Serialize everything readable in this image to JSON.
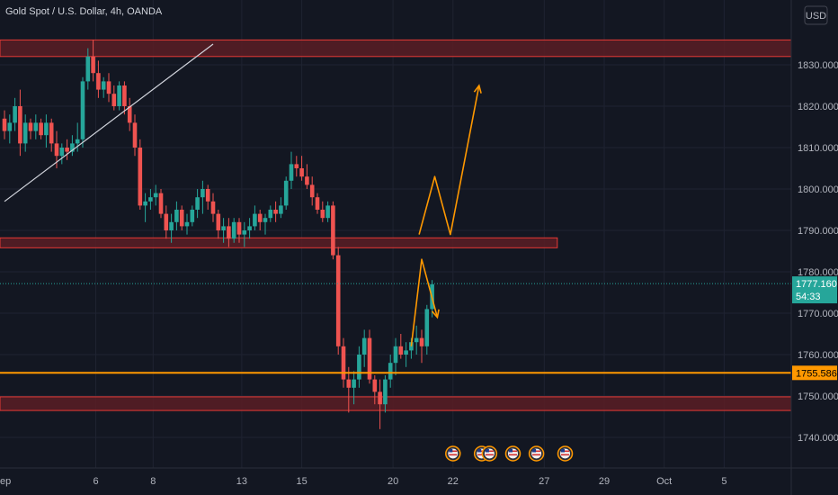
{
  "header": {
    "title": "Gold Spot / U.S. Dollar, 4h, OANDA",
    "currency": "USD"
  },
  "colors": {
    "background": "#131722",
    "grid": "#1f2331",
    "up": "#26a69a",
    "down": "#ef5350",
    "zone_fill": "#5a1d24",
    "zone_stroke": "#e53935",
    "level_line": "#ff9800",
    "price_tag": "#26a69a",
    "level_tag": "#ff9800",
    "trendline": "#d1d4dc",
    "projection": "#ff9800",
    "axis_text": "#b2b5be"
  },
  "chart_data": {
    "type": "candlestick",
    "title": "Gold Spot / U.S. Dollar, 4h, OANDA",
    "ylim": [
      1734,
      1840
    ],
    "y_ticks": [
      1740,
      1750,
      1760,
      1770,
      1780,
      1790,
      1800,
      1810,
      1820,
      1830
    ],
    "y_tick_labels": [
      "1740.000",
      "1750.000",
      "1760.000",
      "1770.000",
      "1780.000",
      "1790.000",
      "1800.000",
      "1810.000",
      "1820.000",
      "1830.000"
    ],
    "x_ticks": [
      {
        "label": "ep",
        "idx": -1
      },
      {
        "label": "6",
        "idx": 17.5
      },
      {
        "label": "8",
        "idx": 28.5
      },
      {
        "label": "13",
        "idx": 45.5
      },
      {
        "label": "15",
        "idx": 57
      },
      {
        "label": "20",
        "idx": 74.5
      },
      {
        "label": "22",
        "idx": 86
      },
      {
        "label": "27",
        "idx": 103.5
      },
      {
        "label": "29",
        "idx": 115
      },
      {
        "label": "Oct",
        "idx": 126.5
      },
      {
        "label": "5",
        "idx": 138
      }
    ],
    "candles": [
      [
        1817,
        1819,
        1812,
        1814
      ],
      [
        1814,
        1818,
        1811,
        1816
      ],
      [
        1816,
        1822,
        1814,
        1820
      ],
      [
        1820,
        1824,
        1808,
        1811
      ],
      [
        1811,
        1818,
        1809,
        1816
      ],
      [
        1816,
        1817,
        1812,
        1814
      ],
      [
        1814,
        1818,
        1812,
        1816
      ],
      [
        1816,
        1817,
        1812,
        1813
      ],
      [
        1813,
        1818,
        1810,
        1816
      ],
      [
        1816,
        1817,
        1809,
        1811
      ],
      [
        1811,
        1814,
        1805,
        1808
      ],
      [
        1808,
        1811,
        1806,
        1810
      ],
      [
        1810,
        1812,
        1807,
        1809
      ],
      [
        1809,
        1813,
        1808,
        1811
      ],
      [
        1811,
        1816,
        1809,
        1812
      ],
      [
        1812,
        1827,
        1810,
        1826
      ],
      [
        1826,
        1834,
        1824,
        1832
      ],
      [
        1832,
        1836,
        1826,
        1828
      ],
      [
        1828,
        1831,
        1822,
        1824
      ],
      [
        1824,
        1827,
        1822,
        1826
      ],
      [
        1826,
        1828,
        1821,
        1823
      ],
      [
        1823,
        1825,
        1819,
        1820
      ],
      [
        1820,
        1826,
        1819,
        1825
      ],
      [
        1825,
        1826,
        1818,
        1820
      ],
      [
        1820,
        1822,
        1814,
        1816
      ],
      [
        1816,
        1818,
        1808,
        1810
      ],
      [
        1810,
        1812,
        1795,
        1796
      ],
      [
        1796,
        1799,
        1792,
        1797
      ],
      [
        1797,
        1800,
        1795,
        1798
      ],
      [
        1798,
        1801,
        1796,
        1799
      ],
      [
        1799,
        1800,
        1793,
        1794
      ],
      [
        1794,
        1796,
        1788,
        1790
      ],
      [
        1790,
        1794,
        1787,
        1792
      ],
      [
        1792,
        1797,
        1790,
        1795
      ],
      [
        1795,
        1796,
        1790,
        1791
      ],
      [
        1791,
        1794,
        1789,
        1792
      ],
      [
        1792,
        1796,
        1791,
        1795
      ],
      [
        1795,
        1800,
        1793,
        1798
      ],
      [
        1798,
        1802,
        1794,
        1800
      ],
      [
        1800,
        1801,
        1795,
        1797
      ],
      [
        1797,
        1799,
        1792,
        1794
      ],
      [
        1794,
        1795,
        1788,
        1790
      ],
      [
        1790,
        1793,
        1787,
        1791
      ],
      [
        1791,
        1793,
        1786,
        1788
      ],
      [
        1788,
        1793,
        1787,
        1792
      ],
      [
        1792,
        1793,
        1787,
        1789
      ],
      [
        1789,
        1792,
        1786,
        1790
      ],
      [
        1790,
        1793,
        1788,
        1791
      ],
      [
        1791,
        1796,
        1790,
        1794
      ],
      [
        1794,
        1795,
        1790,
        1792
      ],
      [
        1792,
        1794,
        1789,
        1793
      ],
      [
        1793,
        1796,
        1792,
        1795
      ],
      [
        1795,
        1797,
        1792,
        1794
      ],
      [
        1794,
        1798,
        1793,
        1796
      ],
      [
        1796,
        1803,
        1795,
        1802
      ],
      [
        1802,
        1809,
        1800,
        1806
      ],
      [
        1806,
        1808,
        1803,
        1805
      ],
      [
        1805,
        1808,
        1802,
        1803
      ],
      [
        1803,
        1806,
        1800,
        1801
      ],
      [
        1801,
        1803,
        1796,
        1798
      ],
      [
        1798,
        1799,
        1794,
        1795
      ],
      [
        1795,
        1797,
        1792,
        1793
      ],
      [
        1793,
        1797,
        1792,
        1796
      ],
      [
        1796,
        1797,
        1783,
        1784
      ],
      [
        1784,
        1786,
        1760,
        1762
      ],
      [
        1762,
        1764,
        1752,
        1754
      ],
      [
        1754,
        1757,
        1746,
        1752
      ],
      [
        1752,
        1756,
        1748,
        1754
      ],
      [
        1754,
        1762,
        1752,
        1760
      ],
      [
        1760,
        1766,
        1757,
        1764
      ],
      [
        1764,
        1766,
        1753,
        1754
      ],
      [
        1754,
        1755,
        1748,
        1751
      ],
      [
        1751,
        1754,
        1742,
        1748
      ],
      [
        1748,
        1755,
        1746,
        1754
      ],
      [
        1754,
        1760,
        1752,
        1758
      ],
      [
        1758,
        1764,
        1755,
        1762
      ],
      [
        1762,
        1765,
        1759,
        1760
      ],
      [
        1760,
        1763,
        1757,
        1761
      ],
      [
        1761,
        1764,
        1759,
        1763
      ],
      [
        1763,
        1767,
        1760,
        1764
      ],
      [
        1764,
        1766,
        1758,
        1762
      ],
      [
        1762,
        1772,
        1760,
        1771
      ],
      [
        1771,
        1778,
        1769,
        1777
      ]
    ],
    "resistance_zones": [
      [
        1832,
        1836
      ],
      [
        1785.8,
        1788.2
      ],
      [
        1746.5,
        1749.8
      ]
    ],
    "level": 1755.586,
    "current_price": 1777.16,
    "trendline": [
      [
        0,
        1797
      ],
      [
        40,
        1835
      ]
    ],
    "projection_up": [
      [
        79.5,
        1789
      ],
      [
        82.5,
        1803
      ],
      [
        85.5,
        1789
      ],
      [
        91,
        1825
      ]
    ],
    "projection_down_peak": [
      [
        78,
        1762
      ],
      [
        80,
        1783
      ],
      [
        83,
        1769
      ]
    ],
    "event_markers_idx": [
      86,
      91.5,
      93,
      97.5,
      102,
      107.5
    ]
  },
  "axis": {
    "price_tag": {
      "value": "1777.160",
      "countdown": "54:33"
    },
    "level_tag": "1755.586",
    "currency_label": "USD"
  }
}
